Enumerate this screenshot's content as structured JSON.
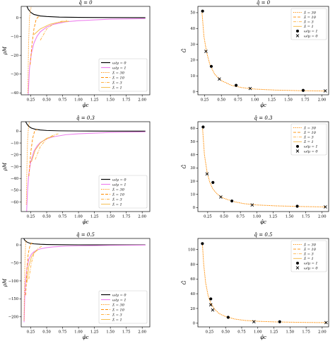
{
  "chart_data": [
    {
      "type": "line",
      "title": "q̂ = 0",
      "xlabel": "φ̂c",
      "ylabel": "ρM",
      "xlim": [
        0.1,
        2.12
      ],
      "ylim": [
        -41,
        6
      ],
      "xticks": [
        "0.25",
        "0.50",
        "0.75",
        "1.00",
        "1.25",
        "1.50",
        "1.75",
        "2.00"
      ],
      "xtick_values": [
        0.25,
        0.5,
        0.75,
        1.0,
        1.25,
        1.5,
        1.75,
        2.0
      ],
      "yticks": [
        "−40",
        "−30",
        "−20",
        "−10",
        "0"
      ],
      "ytick_values": [
        -40,
        -30,
        -20,
        -10,
        0
      ],
      "legend_position": "lower-right",
      "legend": [
        "ω/μ = 0",
        "ω/μ = 1",
        "λ̃ = 30",
        "λ̃ = 10",
        "λ̃ = 3",
        "λ̃ = 1"
      ],
      "series": [
        {
          "name": "ω/μ = 0",
          "color": "#000000",
          "style": "solid",
          "x": [
            0.19,
            0.21,
            0.25,
            0.3,
            0.4,
            0.5,
            0.7,
            1.0,
            1.5,
            2.05
          ],
          "y": [
            6,
            4.5,
            2.8,
            1.7,
            0.9,
            0.6,
            0.3,
            0.15,
            0.05,
            0.02
          ]
        },
        {
          "name": "ω/μ = 1",
          "color": "#ee82ee",
          "style": "solid",
          "x": [
            0.21,
            0.23,
            0.26,
            0.3,
            0.35,
            0.4,
            0.5,
            0.6,
            0.8,
            1.0,
            1.5,
            2.05
          ],
          "y": [
            -41,
            -27,
            -19,
            -13.5,
            -9.8,
            -7.5,
            -5,
            -3.6,
            -2.2,
            -1.6,
            -0.8,
            -0.5
          ]
        },
        {
          "name": "λ̃ = 30",
          "color": "#ff8c00",
          "style": "dotted",
          "x": [
            0.205,
            0.215,
            0.23,
            0.245,
            0.26
          ],
          "y": [
            -40,
            -15,
            0,
            4,
            6
          ]
        },
        {
          "name": "λ̃ = 10",
          "color": "#ff8c00",
          "style": "dashed",
          "x": [
            0.24,
            0.27,
            0.3,
            0.33,
            0.36,
            0.4
          ],
          "y": [
            -25,
            -14,
            -6,
            -1.5,
            0.3,
            0.6
          ]
        },
        {
          "name": "λ̃ = 3",
          "color": "#ffb347",
          "style": "dashdot",
          "x": [
            0.4,
            0.5,
            0.62,
            0.75,
            0.82
          ],
          "y": [
            -12,
            -6,
            -3,
            -1.8,
            -1.5
          ]
        },
        {
          "name": "λ̃ = 1",
          "color": "#f4b942",
          "style": "solid",
          "x": [
            0.3,
            0.4,
            0.55,
            0.7,
            0.85
          ],
          "y": [
            -9,
            -6,
            -3.5,
            -2.4,
            -1.9
          ]
        }
      ]
    },
    {
      "type": "scatter",
      "title": "q̂ = 0",
      "xlabel": "φ̂c",
      "ylabel": "Ĝ",
      "xlim": [
        0.15,
        2.1
      ],
      "ylim": [
        -2,
        54
      ],
      "xticks": [
        "0.25",
        "0.50",
        "0.75",
        "1.00",
        "1.25",
        "1.50",
        "1.75",
        "2.00"
      ],
      "xtick_values": [
        0.25,
        0.5,
        0.75,
        1.0,
        1.25,
        1.5,
        1.75,
        2.0
      ],
      "yticks": [
        "0",
        "10",
        "20",
        "30",
        "40",
        "50"
      ],
      "ytick_values": [
        0,
        10,
        20,
        30,
        40,
        50
      ],
      "legend_position": "upper-right",
      "legend": [
        "λ̃ = 30",
        "λ̃ = 10",
        "λ̃ = 3",
        "λ̃ = 1",
        "ω/μ = 1",
        "ω/μ = 0"
      ],
      "curve": {
        "color": "#ff8c00",
        "x": [
          0.21,
          0.24,
          0.28,
          0.33,
          0.4,
          0.5,
          0.65,
          0.8,
          1.0,
          1.3,
          1.7,
          2.05
        ],
        "y": [
          51,
          35,
          25,
          17,
          11,
          7,
          4,
          2.6,
          1.6,
          1,
          0.6,
          0.4
        ]
      },
      "points_omega1": {
        "x": [
          0.22,
          0.35,
          0.72,
          1.72
        ],
        "y": [
          51,
          16,
          4,
          0.8
        ]
      },
      "points_omega0": {
        "x": [
          0.27,
          0.47,
          0.93,
          2.05
        ],
        "y": [
          25.5,
          8,
          2,
          0.5
        ]
      }
    },
    {
      "type": "line",
      "title": "q̂ = 0.3",
      "xlabel": "φ̂c",
      "ylabel": "ρM",
      "xlim": [
        0.1,
        2.12
      ],
      "ylim": [
        -68,
        8
      ],
      "xticks": [
        "0.25",
        "0.50",
        "0.75",
        "1.00",
        "1.25",
        "1.50",
        "1.75",
        "2.00"
      ],
      "xtick_values": [
        0.25,
        0.5,
        0.75,
        1.0,
        1.25,
        1.5,
        1.75,
        2.0
      ],
      "yticks": [
        "−60",
        "−50",
        "−40",
        "−30",
        "−20",
        "−10",
        "0"
      ],
      "ytick_values": [
        -60,
        -50,
        -40,
        -30,
        -20,
        -10,
        0
      ],
      "legend_position": "lower-right",
      "legend": [
        "ω/μ = 0",
        "ω/μ = 1",
        "λ̃ = 30",
        "λ̃ = 10",
        "λ̃ = 3",
        "λ̃ = 1"
      ],
      "series": [
        {
          "name": "ω/μ = 0",
          "color": "#000000",
          "style": "solid",
          "x": [
            0.17,
            0.19,
            0.22,
            0.26,
            0.32,
            0.4,
            0.5,
            0.7,
            1.0,
            1.5,
            2.05
          ],
          "y": [
            8,
            6,
            4,
            2.6,
            1.6,
            1,
            0.6,
            0.3,
            0.15,
            0.06,
            0.02
          ]
        },
        {
          "name": "ω/μ = 1",
          "color": "#ee82ee",
          "style": "solid",
          "x": [
            0.185,
            0.2,
            0.22,
            0.25,
            0.3,
            0.35,
            0.4,
            0.5,
            0.6,
            0.8,
            1.0,
            1.5,
            2.05
          ],
          "y": [
            -68,
            -50,
            -36,
            -26,
            -17,
            -12.5,
            -9.6,
            -6.5,
            -4.8,
            -3,
            -2.2,
            -1.1,
            -0.6
          ]
        },
        {
          "name": "λ̃ = 30",
          "color": "#ff8c00",
          "style": "dotted",
          "x": [
            0.18,
            0.19,
            0.2,
            0.215,
            0.23
          ],
          "y": [
            -62,
            -30,
            -8,
            4,
            8
          ]
        },
        {
          "name": "λ̃ = 10",
          "color": "#ff8c00",
          "style": "dashed",
          "x": [
            0.22,
            0.25,
            0.28,
            0.31,
            0.35
          ],
          "y": [
            -38,
            -18,
            -6,
            0,
            1.5
          ]
        },
        {
          "name": "λ̃ = 3",
          "color": "#ffb347",
          "style": "dashdot",
          "x": [
            0.32,
            0.4,
            0.5,
            0.6,
            0.7
          ],
          "y": [
            -24,
            -13,
            -6.5,
            -3.5,
            -2
          ]
        },
        {
          "name": "λ̃ = 1",
          "color": "#f4b942",
          "style": "solid",
          "x": [
            0.26,
            0.32,
            0.4,
            0.5,
            0.62
          ],
          "y": [
            -26,
            -16,
            -10,
            -6,
            -4
          ]
        }
      ]
    },
    {
      "type": "scatter",
      "title": "q̂ = 0.3",
      "xlabel": "φ̂c",
      "ylabel": "Ĝ",
      "xlim": [
        0.1,
        2.1
      ],
      "ylim": [
        -3,
        65
      ],
      "xticks": [
        "0.25",
        "0.50",
        "0.75",
        "1.00",
        "1.25",
        "1.50",
        "1.75",
        "2.00"
      ],
      "xtick_values": [
        0.25,
        0.5,
        0.75,
        1.0,
        1.25,
        1.5,
        1.75,
        2.0
      ],
      "yticks": [
        "0",
        "10",
        "20",
        "30",
        "40",
        "50",
        "60"
      ],
      "ytick_values": [
        0,
        10,
        20,
        30,
        40,
        50,
        60
      ],
      "legend_position": "upper-right",
      "legend": [
        "λ̃ = 30",
        "λ̃ = 10",
        "λ̃ = 3",
        "λ̃ = 1",
        "ω/μ = 1",
        "ω/μ = 0"
      ],
      "curve": {
        "color": "#ff8c00",
        "x": [
          0.17,
          0.2,
          0.24,
          0.28,
          0.33,
          0.4,
          0.5,
          0.65,
          0.8,
          1.0,
          1.3,
          1.7,
          2.05
        ],
        "y": [
          61,
          40,
          27,
          19.5,
          14,
          10,
          7,
          4.5,
          3,
          2,
          1.3,
          0.8,
          0.5
        ]
      },
      "points_omega1": {
        "x": [
          0.18,
          0.33,
          0.62,
          1.62
        ],
        "y": [
          61,
          19,
          5,
          1
        ]
      },
      "points_omega0": {
        "x": [
          0.24,
          0.45,
          0.93,
          2.05
        ],
        "y": [
          25.5,
          8,
          2,
          0.5
        ]
      }
    },
    {
      "type": "line",
      "title": "q̂ = 0.5",
      "xlabel": "φ̂c",
      "ylabel": "ρM",
      "xlim": [
        0.1,
        2.12
      ],
      "ylim": [
        -228,
        18
      ],
      "xticks": [
        "0.25",
        "0.50",
        "0.75",
        "1.00",
        "1.25",
        "1.50",
        "1.75",
        "2.00"
      ],
      "xtick_values": [
        0.25,
        0.5,
        0.75,
        1.0,
        1.25,
        1.5,
        1.75,
        2.0
      ],
      "yticks": [
        "−200",
        "−150",
        "−100",
        "−50",
        "0"
      ],
      "ytick_values": [
        -200,
        -150,
        -100,
        -50,
        0
      ],
      "legend_position": "lower-right",
      "legend": [
        "ω/μ = 0",
        "ω/μ = 1",
        "λ̃ = 30",
        "λ̃ = 10",
        "λ̃ = 3",
        "λ̃ = 1"
      ],
      "series": [
        {
          "name": "ω/μ = 0",
          "color": "#000000",
          "style": "solid",
          "x": [
            0.14,
            0.16,
            0.19,
            0.23,
            0.3,
            0.4,
            0.5,
            0.7,
            1.0,
            1.5,
            2.05
          ],
          "y": [
            18,
            12,
            8,
            5,
            3,
            1.8,
            1.2,
            0.6,
            0.3,
            0.1,
            0.05
          ]
        },
        {
          "name": "ω/μ = 1",
          "color": "#ee82ee",
          "style": "solid",
          "x": [
            0.145,
            0.155,
            0.17,
            0.19,
            0.22,
            0.26,
            0.3,
            0.35,
            0.4,
            0.5,
            0.6,
            0.8,
            1.0,
            1.5,
            2.05
          ],
          "y": [
            -215,
            -150,
            -100,
            -65,
            -40,
            -26,
            -19,
            -14,
            -11,
            -7.5,
            -5.5,
            -3.4,
            -2.4,
            -1.2,
            -0.7
          ]
        },
        {
          "name": "λ̃ = 30",
          "color": "#ff8c00",
          "style": "dotted",
          "x": [
            0.145,
            0.15,
            0.16,
            0.17,
            0.18
          ],
          "y": [
            -210,
            -120,
            -40,
            5,
            15
          ]
        },
        {
          "name": "λ̃ = 10",
          "color": "#ff8c00",
          "style": "dashed",
          "x": [
            0.17,
            0.19,
            0.21,
            0.24,
            0.27
          ],
          "y": [
            -140,
            -70,
            -25,
            0,
            6
          ]
        },
        {
          "name": "λ̃ = 3",
          "color": "#ffb347",
          "style": "dashdot",
          "x": [
            0.22,
            0.26,
            0.3,
            0.36,
            0.42
          ],
          "y": [
            -95,
            -50,
            -25,
            -10,
            -4
          ]
        },
        {
          "name": "λ̃ = 1",
          "color": "#f4b942",
          "style": "solid",
          "x": [
            0.19,
            0.22,
            0.26,
            0.3,
            0.36
          ],
          "y": [
            -105,
            -60,
            -34,
            -22,
            -14
          ]
        }
      ]
    },
    {
      "type": "scatter",
      "title": "q̂ = 0.5",
      "xlabel": "φ̂c",
      "ylabel": "Ĝ",
      "xlim": [
        0.07,
        2.1
      ],
      "ylim": [
        -5,
        115
      ],
      "xticks": [
        "0.25",
        "0.50",
        "0.75",
        "1.00",
        "1.25",
        "1.50",
        "1.75",
        "2.00"
      ],
      "xtick_values": [
        0.25,
        0.5,
        0.75,
        1.0,
        1.25,
        1.5,
        1.75,
        2.0
      ],
      "yticks": [
        "0",
        "20",
        "40",
        "60",
        "80",
        "100"
      ],
      "ytick_values": [
        0,
        20,
        40,
        60,
        80,
        100
      ],
      "legend_position": "upper-right",
      "legend": [
        "λ̃ = 30",
        "λ̃ = 10",
        "λ̃ = 3",
        "λ̃ = 1",
        "ω/μ = 1",
        "ω/μ = 0"
      ],
      "curve": {
        "color": "#ff8c00",
        "x": [
          0.14,
          0.16,
          0.19,
          0.23,
          0.27,
          0.33,
          0.4,
          0.5,
          0.65,
          0.8,
          1.0,
          1.3,
          1.7,
          2.05
        ],
        "y": [
          108,
          80,
          55,
          37,
          27,
          19,
          13,
          9,
          5.5,
          3.8,
          2.6,
          1.7,
          1.1,
          0.8
        ]
      },
      "points_omega1": {
        "x": [
          0.14,
          0.27,
          0.54,
          1.34
        ],
        "y": [
          108,
          33,
          8,
          2
        ]
      },
      "points_omega0": {
        "x": [
          0.27,
          0.3,
          0.94,
          2.06
        ],
        "y": [
          25,
          18,
          2,
          0.8
        ]
      }
    }
  ]
}
